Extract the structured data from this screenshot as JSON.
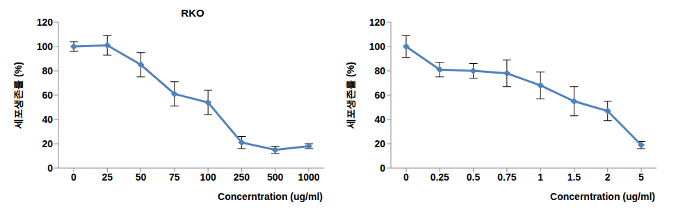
{
  "chart_data": [
    {
      "type": "line",
      "title": "RKO",
      "x_label": "Concerntration (ug/ml)",
      "y_label": "세포생존률 (%)",
      "categories": [
        "0",
        "25",
        "50",
        "75",
        "100",
        "250",
        "500",
        "1000"
      ],
      "values": [
        100,
        101,
        85,
        61,
        54,
        21,
        15,
        18
      ],
      "errors": [
        4,
        8,
        10,
        10,
        10,
        5,
        3,
        2
      ],
      "ylim": [
        0,
        120
      ],
      "yticks": [
        0,
        20,
        40,
        60,
        80,
        100,
        120
      ],
      "color": "#4f81bd",
      "marker": "diamond",
      "grid": false
    },
    {
      "type": "line",
      "x_label": "Concerntration (ug/ml)",
      "y_label": "세포생존률 (%)",
      "categories": [
        "0",
        "0.25",
        "0.5",
        "0.75",
        "1",
        "1.5",
        "2",
        "5"
      ],
      "values": [
        100,
        81,
        80,
        78,
        68,
        55,
        47,
        19
      ],
      "errors": [
        9,
        6,
        6,
        11,
        11,
        12,
        8,
        3
      ],
      "ylim": [
        0,
        120
      ],
      "yticks": [
        0,
        20,
        40,
        60,
        80,
        100,
        120
      ],
      "color": "#4f81bd",
      "marker": "diamond",
      "grid": false
    }
  ]
}
